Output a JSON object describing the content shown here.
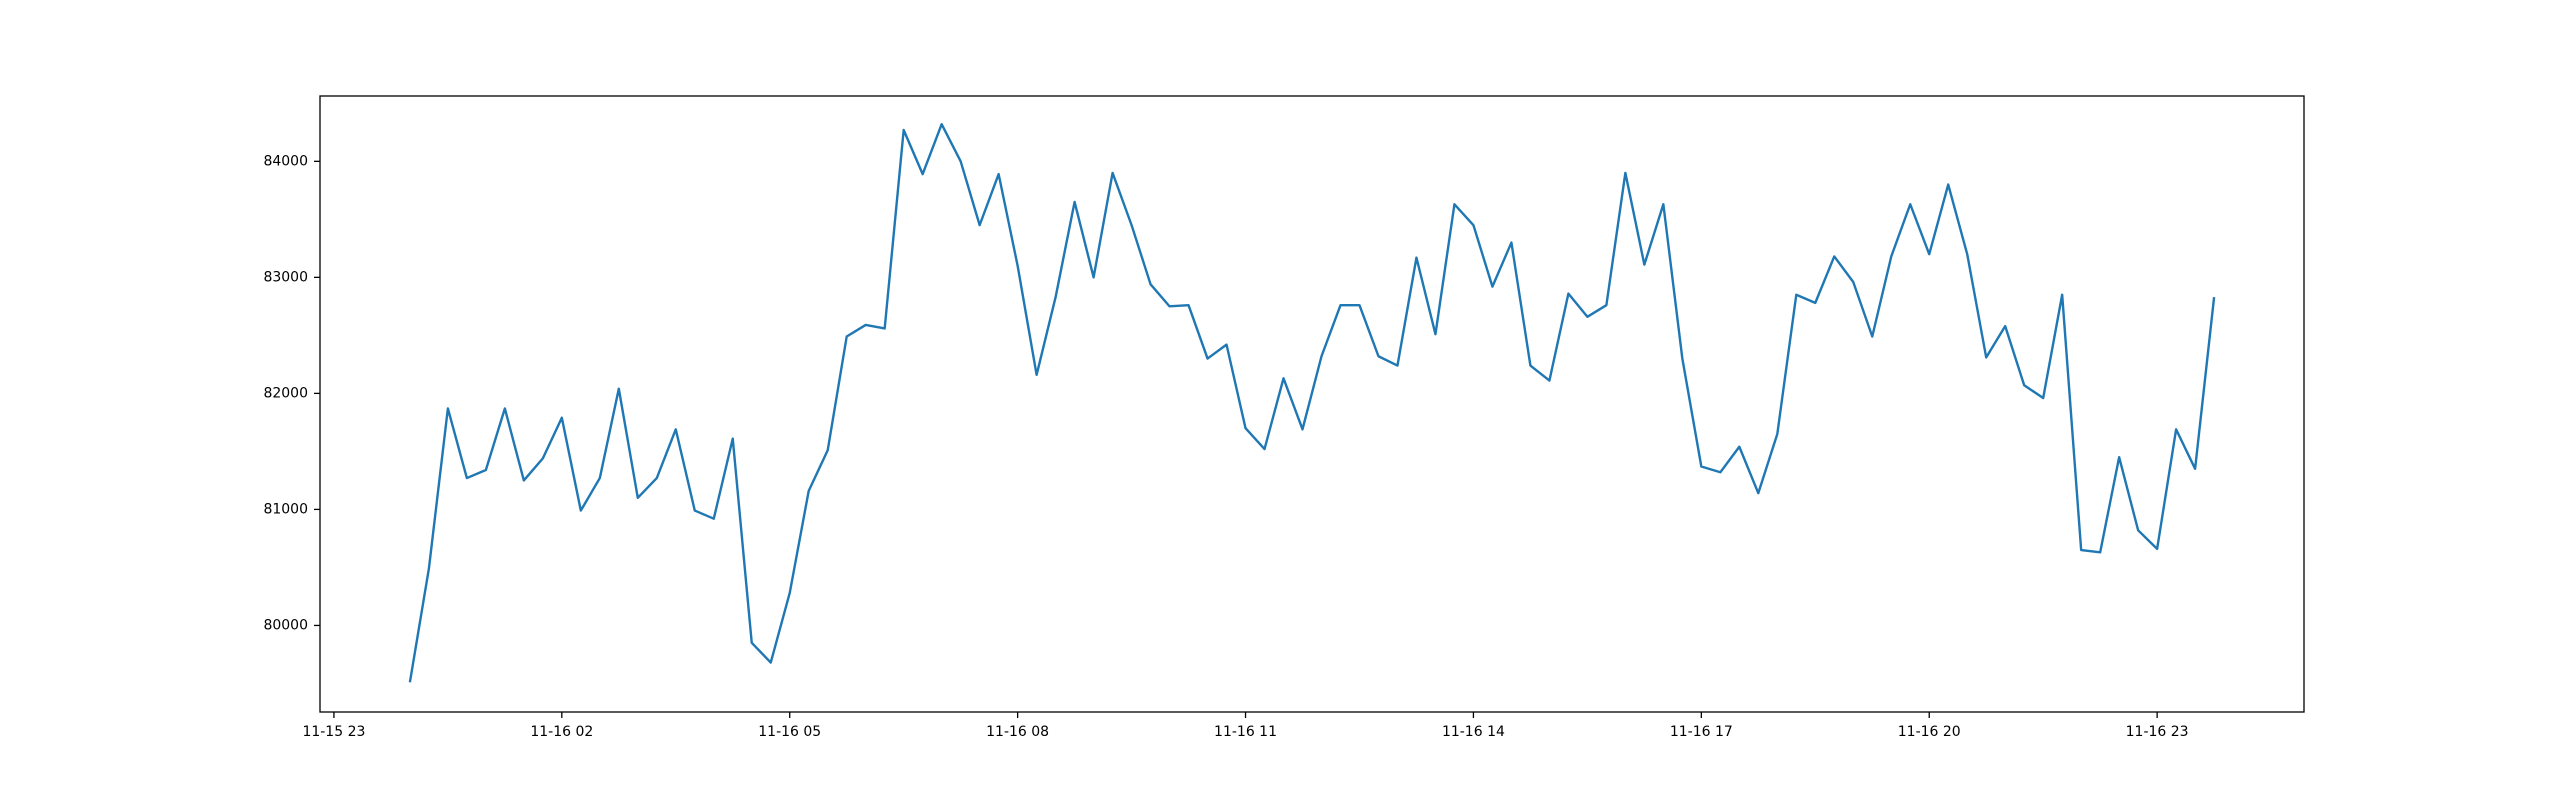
{
  "chart_data": {
    "type": "line",
    "color": "#1f77b4",
    "x": [
      "11-16 00:00",
      "11-16 00:15",
      "11-16 00:30",
      "11-16 00:45",
      "11-16 01:00",
      "11-16 01:15",
      "11-16 01:30",
      "11-16 01:45",
      "11-16 02:00",
      "11-16 02:15",
      "11-16 02:30",
      "11-16 02:45",
      "11-16 03:00",
      "11-16 03:15",
      "11-16 03:30",
      "11-16 03:45",
      "11-16 04:00",
      "11-16 04:15",
      "11-16 04:30",
      "11-16 04:45",
      "11-16 05:00",
      "11-16 05:15",
      "11-16 05:30",
      "11-16 05:45",
      "11-16 06:00",
      "11-16 06:15",
      "11-16 06:30",
      "11-16 06:45",
      "11-16 07:00",
      "11-16 07:15",
      "11-16 07:30",
      "11-16 07:45",
      "11-16 08:00",
      "11-16 08:15",
      "11-16 08:30",
      "11-16 08:45",
      "11-16 09:00",
      "11-16 09:15",
      "11-16 09:30",
      "11-16 09:45",
      "11-16 10:00",
      "11-16 10:15",
      "11-16 10:30",
      "11-16 10:45",
      "11-16 11:00",
      "11-16 11:15",
      "11-16 11:30",
      "11-16 11:45",
      "11-16 12:00",
      "11-16 12:15",
      "11-16 12:30",
      "11-16 12:45",
      "11-16 13:00",
      "11-16 13:15",
      "11-16 13:30",
      "11-16 13:45",
      "11-16 14:00",
      "11-16 14:15",
      "11-16 14:30",
      "11-16 14:45",
      "11-16 15:00",
      "11-16 15:15",
      "11-16 15:30",
      "11-16 15:45",
      "11-16 16:00",
      "11-16 16:15",
      "11-16 16:30",
      "11-16 16:45",
      "11-16 17:00",
      "11-16 17:15",
      "11-16 17:30",
      "11-16 17:45",
      "11-16 18:00",
      "11-16 18:15",
      "11-16 18:30",
      "11-16 18:45",
      "11-16 19:00",
      "11-16 19:15",
      "11-16 19:30",
      "11-16 19:45",
      "11-16 20:00",
      "11-16 20:15",
      "11-16 20:30",
      "11-16 20:45",
      "11-16 21:00",
      "11-16 21:15",
      "11-16 21:30",
      "11-16 21:45",
      "11-16 22:00",
      "11-16 22:15",
      "11-16 22:30",
      "11-16 22:45",
      "11-16 23:00",
      "11-16 23:15",
      "11-16 23:30",
      "11-16 23:45"
    ],
    "values": [
      79510,
      80490,
      81870,
      81270,
      81340,
      81870,
      81250,
      81440,
      81790,
      80990,
      81270,
      82040,
      81100,
      81270,
      81690,
      80990,
      80920,
      81610,
      79850,
      79680,
      80280,
      81160,
      81510,
      82490,
      82590,
      82560,
      84270,
      83890,
      84320,
      84000,
      83450,
      83890,
      83100,
      82160,
      82830,
      83650,
      83000,
      83900,
      83450,
      82940,
      82750,
      82760,
      82300,
      82420,
      81700,
      81520,
      82130,
      81690,
      82320,
      82760,
      82760,
      82320,
      82240,
      83170,
      82510,
      83630,
      83450,
      82920,
      83300,
      82240,
      82110,
      82860,
      82660,
      82760,
      83900,
      83110,
      83630,
      82300,
      81370,
      81320,
      81540,
      81140,
      81650,
      82850,
      82780,
      83180,
      82960,
      82490,
      83180,
      83630,
      83200,
      83800,
      83200,
      82310,
      82580,
      82070,
      81960,
      82850,
      80650,
      80630,
      81450,
      80820,
      80660,
      81690,
      81350,
      82830
    ],
    "xlim": [
      "11-15 22:49",
      "11-17 00:56"
    ],
    "xticks": [
      "11-15 23",
      "11-16 02",
      "11-16 05",
      "11-16 08",
      "11-16 11",
      "11-16 14",
      "11-16 17",
      "11-16 20",
      "11-16 23"
    ],
    "ylim": [
      79254,
      84563
    ],
    "yticks": [
      80000,
      81000,
      82000,
      83000,
      84000
    ]
  }
}
